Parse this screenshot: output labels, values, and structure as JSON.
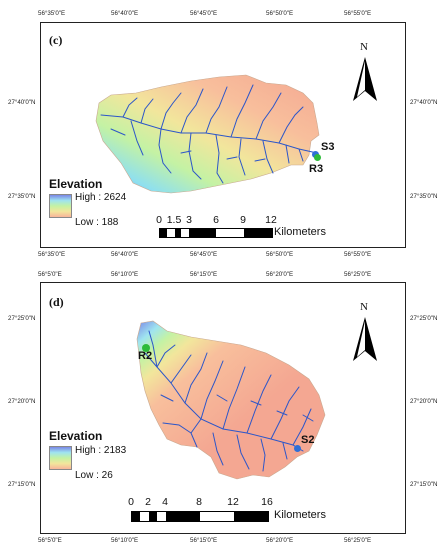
{
  "panels": [
    {
      "id": "c",
      "label": "(c)",
      "top_labels": [
        "56°35'0\"E",
        "56°40'0\"E",
        "56°45'0\"E",
        "56°50'0\"E",
        "56°55'0\"E"
      ],
      "bottom_labels": [
        "56°35'0\"E",
        "56°40'0\"E",
        "56°45'0\"E",
        "56°50'0\"E",
        "56°55'0\"E"
      ],
      "left_labels": [
        "27°40'0\"N",
        "27°35'0\"N"
      ],
      "right_labels": [
        "27°40'0\"N",
        "27°35'0\"N"
      ],
      "north": "N",
      "legend": {
        "title": "Elevation",
        "high": "High : 2624",
        "low": "Low : 188",
        "colors": [
          "#6a7fe0",
          "#9fe4f0",
          "#bff0a0",
          "#f0e59a",
          "#f8b59a"
        ]
      },
      "scalebar": {
        "numbers": [
          "0",
          "1.5",
          "3",
          "6",
          "9",
          "12"
        ],
        "unit": "Kilometers"
      },
      "stations": [
        {
          "name": "S3",
          "color": "#2f6fd6"
        },
        {
          "name": "R3",
          "color": "#2dbb3a"
        }
      ]
    },
    {
      "id": "d",
      "label": "(d)",
      "top_labels": [
        "56°5'0\"E",
        "56°10'0\"E",
        "56°15'0\"E",
        "56°20'0\"E",
        "56°25'0\"E"
      ],
      "bottom_labels": [
        "56°5'0\"E",
        "56°10'0\"E",
        "56°15'0\"E",
        "56°20'0\"E",
        "56°25'0\"E"
      ],
      "left_labels": [
        "27°25'0\"N",
        "27°20'0\"N",
        "27°15'0\"N"
      ],
      "right_labels": [
        "27°25'0\"N",
        "27°20'0\"N",
        "27°15'0\"N"
      ],
      "north": "N",
      "legend": {
        "title": "Elevation",
        "high": "High : 2183",
        "low": "Low : 26",
        "colors": [
          "#6a7fe0",
          "#9fe4f0",
          "#bff0a0",
          "#f0e59a",
          "#f8b59a"
        ]
      },
      "scalebar": {
        "numbers": [
          "0",
          "2",
          "4",
          "8",
          "12",
          "16"
        ],
        "unit": "Kilometers"
      },
      "stations": [
        {
          "name": "R2",
          "color": "#2dbb3a"
        },
        {
          "name": "S2",
          "color": "#2f6fd6"
        }
      ]
    }
  ]
}
